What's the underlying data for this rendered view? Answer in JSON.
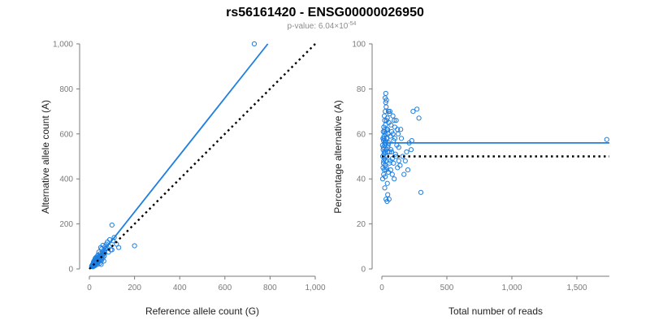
{
  "header": {
    "title": "rs56161420 - ENSG00000026950",
    "pvalue_prefix": "p-value: 6.04×10",
    "pvalue_exponent": "-54"
  },
  "colors": {
    "series": "#1f7fe0",
    "reference_line": "#000000",
    "axis": "#7a7a7a"
  },
  "chart_data": [
    {
      "type": "scatter",
      "xlabel": "Reference allele count (G)",
      "ylabel": "Alternative allele count (A)",
      "xlim": [
        0,
        1000
      ],
      "ylim": [
        0,
        1000
      ],
      "xticks": [
        0,
        200,
        400,
        600,
        800,
        1000
      ],
      "yticks": [
        0,
        200,
        400,
        600,
        800,
        1000
      ],
      "xtick_labels": [
        "0",
        "200",
        "400",
        "600",
        "800",
        "1,000"
      ],
      "ytick_labels": [
        "0",
        "200",
        "400",
        "600",
        "800",
        "1,000"
      ],
      "grid": false,
      "fit_line": {
        "x": [
          0,
          790
        ],
        "y": [
          0,
          1000
        ]
      },
      "reference_line": {
        "x": [
          0,
          1000
        ],
        "y": [
          0,
          1000
        ],
        "style": "dotted"
      },
      "points": [
        [
          730,
          1000
        ],
        [
          200,
          103
        ],
        [
          100,
          195
        ],
        [
          110,
          140
        ],
        [
          105,
          125
        ],
        [
          90,
          130
        ],
        [
          80,
          120
        ],
        [
          75,
          110
        ],
        [
          70,
          100
        ],
        [
          60,
          105
        ],
        [
          55,
          90
        ],
        [
          50,
          95
        ],
        [
          65,
          80
        ],
        [
          58,
          72
        ],
        [
          48,
          68
        ],
        [
          42,
          75
        ],
        [
          45,
          55
        ],
        [
          38,
          62
        ],
        [
          35,
          50
        ],
        [
          30,
          48
        ],
        [
          28,
          40
        ],
        [
          33,
          42
        ],
        [
          25,
          35
        ],
        [
          22,
          30
        ],
        [
          20,
          28
        ],
        [
          18,
          25
        ],
        [
          26,
          32
        ],
        [
          24,
          22
        ],
        [
          21,
          20
        ],
        [
          19,
          18
        ],
        [
          16,
          15
        ],
        [
          15,
          20
        ],
        [
          14,
          12
        ],
        [
          17,
          10
        ],
        [
          23,
          14
        ],
        [
          27,
          18
        ],
        [
          29,
          25
        ],
        [
          31,
          30
        ],
        [
          36,
          38
        ],
        [
          40,
          45
        ],
        [
          44,
          40
        ],
        [
          52,
          50
        ],
        [
          57,
          60
        ],
        [
          62,
          65
        ],
        [
          66,
          58
        ],
        [
          72,
          90
        ],
        [
          85,
          75
        ],
        [
          95,
          85
        ],
        [
          120,
          110
        ],
        [
          130,
          95
        ],
        [
          35,
          20
        ],
        [
          40,
          30
        ],
        [
          45,
          35
        ],
        [
          50,
          38
        ],
        [
          12,
          10
        ],
        [
          13,
          18
        ],
        [
          11,
          14
        ],
        [
          10,
          12
        ],
        [
          30,
          22
        ],
        [
          32,
          28
        ],
        [
          38,
          33
        ],
        [
          42,
          48
        ],
        [
          20,
          35
        ],
        [
          18,
          30
        ],
        [
          25,
          45
        ],
        [
          28,
          50
        ],
        [
          34,
          55
        ],
        [
          55,
          40
        ],
        [
          60,
          50
        ],
        [
          68,
          70
        ],
        [
          78,
          95
        ],
        [
          88,
          100
        ],
        [
          100,
          85
        ],
        [
          26,
          16
        ],
        [
          22,
          24
        ],
        [
          16,
          22
        ],
        [
          14,
          16
        ],
        [
          20,
          14
        ],
        [
          24,
          28
        ],
        [
          46,
          25
        ],
        [
          52,
          20
        ],
        [
          64,
          35
        ],
        [
          48,
          60
        ],
        [
          37,
          44
        ],
        [
          43,
          52
        ],
        [
          30,
          36
        ],
        [
          27,
          24
        ],
        [
          19,
          21
        ],
        [
          23,
          19
        ],
        [
          21,
          26
        ],
        [
          17,
          23
        ],
        [
          15,
          13
        ],
        [
          33,
          27
        ],
        [
          39,
          41
        ],
        [
          41,
          36
        ]
      ]
    },
    {
      "type": "scatter",
      "xlabel": "Total number of reads",
      "ylabel": "Percentage alternative (A)",
      "xlim": [
        0,
        1750
      ],
      "ylim": [
        0,
        100
      ],
      "xticks": [
        0,
        500,
        1000,
        1500
      ],
      "yticks": [
        0,
        20,
        40,
        60,
        80,
        100
      ],
      "xtick_labels": [
        "0",
        "500",
        "1,000",
        "1,500"
      ],
      "ytick_labels": [
        "0",
        "20",
        "40",
        "60",
        "80",
        "100"
      ],
      "grid": false,
      "fit_line": {
        "x": [
          0,
          1750
        ],
        "y": [
          56,
          56
        ]
      },
      "reference_line": {
        "x": [
          0,
          1750
        ],
        "y": [
          50,
          50
        ],
        "style": "dotted"
      },
      "points": [
        [
          1730,
          57.5
        ],
        [
          300,
          34
        ],
        [
          270,
          71
        ],
        [
          285,
          67
        ],
        [
          240,
          70
        ],
        [
          230,
          57
        ],
        [
          225,
          53
        ],
        [
          210,
          56
        ],
        [
          200,
          44
        ],
        [
          190,
          52
        ],
        [
          180,
          48
        ],
        [
          170,
          42
        ],
        [
          160,
          50
        ],
        [
          150,
          58
        ],
        [
          145,
          62
        ],
        [
          140,
          46
        ],
        [
          130,
          54
        ],
        [
          125,
          60
        ],
        [
          120,
          45
        ],
        [
          115,
          55
        ],
        [
          110,
          66
        ],
        [
          105,
          51
        ],
        [
          100,
          63
        ],
        [
          95,
          40
        ],
        [
          90,
          57
        ],
        [
          85,
          68
        ],
        [
          80,
          49
        ],
        [
          75,
          61
        ],
        [
          70,
          53
        ],
        [
          68,
          44
        ],
        [
          65,
          59
        ],
        [
          62,
          70
        ],
        [
          60,
          52
        ],
        [
          58,
          47
        ],
        [
          55,
          65
        ],
        [
          52,
          56
        ],
        [
          50,
          43
        ],
        [
          48,
          60
        ],
        [
          46,
          54
        ],
        [
          44,
          62
        ],
        [
          42,
          38
        ],
        [
          40,
          58
        ],
        [
          38,
          50
        ],
        [
          36,
          66
        ],
        [
          35,
          45
        ],
        [
          34,
          53
        ],
        [
          33,
          72
        ],
        [
          32,
          31
        ],
        [
          31,
          56
        ],
        [
          30,
          48
        ],
        [
          29,
          74
        ],
        [
          28,
          52
        ],
        [
          27,
          64
        ],
        [
          26,
          41
        ],
        [
          25,
          57
        ],
        [
          24,
          46
        ],
        [
          23,
          62
        ],
        [
          22,
          36
        ],
        [
          21,
          55
        ],
        [
          20,
          49
        ],
        [
          19,
          68
        ],
        [
          18,
          44
        ],
        [
          17,
          59
        ],
        [
          16,
          51
        ],
        [
          15,
          63
        ],
        [
          14,
          42
        ],
        [
          13,
          57
        ],
        [
          12,
          47
        ],
        [
          11,
          61
        ],
        [
          10,
          53
        ],
        [
          9,
          45
        ],
        [
          8,
          58
        ],
        [
          7,
          50
        ],
        [
          6,
          40
        ],
        [
          5,
          55
        ],
        [
          25,
          76
        ],
        [
          30,
          78
        ],
        [
          40,
          30
        ],
        [
          45,
          33
        ],
        [
          55,
          31
        ],
        [
          35,
          75
        ],
        [
          60,
          69
        ],
        [
          70,
          64
        ],
        [
          85,
          60
        ],
        [
          95,
          66
        ],
        [
          50,
          70
        ],
        [
          65,
          48
        ],
        [
          75,
          52
        ],
        [
          80,
          42
        ],
        [
          90,
          47
        ],
        [
          100,
          58
        ],
        [
          110,
          50
        ],
        [
          120,
          62
        ],
        [
          130,
          48
        ],
        [
          42,
          67
        ],
        [
          38,
          62
        ],
        [
          28,
          60
        ],
        [
          24,
          56
        ],
        [
          20,
          61
        ],
        [
          18,
          52
        ],
        [
          16,
          58
        ],
        [
          14,
          48
        ],
        [
          12,
          54
        ],
        [
          22,
          66
        ],
        [
          26,
          70
        ],
        [
          32,
          44
        ],
        [
          36,
          58
        ],
        [
          44,
          52
        ],
        [
          48,
          55
        ]
      ]
    }
  ]
}
